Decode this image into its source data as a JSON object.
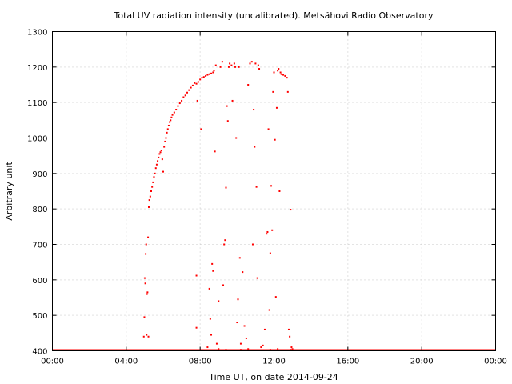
{
  "chart_data": {
    "type": "scatter",
    "title": "Total UV radiation intensity (uncalibrated). Metsähovi Radio Observatory",
    "xlabel": "Time UT, on date 2014-09-24",
    "ylabel": "Arbitrary unit",
    "xlim": [
      0,
      24
    ],
    "ylim": [
      400,
      1300
    ],
    "x_ticks": [
      0,
      4,
      8,
      12,
      16,
      20,
      24
    ],
    "x_tick_labels": [
      "00:00",
      "04:00",
      "08:00",
      "12:00",
      "16:00",
      "20:00",
      "00:00"
    ],
    "y_ticks": [
      400,
      500,
      600,
      700,
      800,
      900,
      1000,
      1100,
      1200,
      1300
    ],
    "y_tick_labels": [
      "400",
      "500",
      "600",
      "700",
      "800",
      "900",
      "1000",
      "1100",
      "1200",
      "1300"
    ],
    "grid": true,
    "marker_color": "#ff0000",
    "baseline": {
      "y": 400,
      "x_start": 0,
      "x_end": 24
    },
    "series": [
      {
        "values": [
          [
            4.85,
            402
          ],
          [
            4.95,
            440
          ],
          [
            4.98,
            495
          ],
          [
            5.0,
            605
          ],
          [
            5.03,
            590
          ],
          [
            5.05,
            673
          ],
          [
            5.08,
            700
          ],
          [
            5.1,
            445
          ],
          [
            5.12,
            560
          ],
          [
            5.15,
            565
          ],
          [
            5.18,
            720
          ],
          [
            5.2,
            440
          ],
          [
            5.22,
            805
          ],
          [
            5.25,
            825
          ],
          [
            5.3,
            835
          ],
          [
            5.35,
            850
          ],
          [
            5.4,
            862
          ],
          [
            5.45,
            875
          ],
          [
            5.5,
            890
          ],
          [
            5.55,
            900
          ],
          [
            5.6,
            915
          ],
          [
            5.65,
            925
          ],
          [
            5.7,
            935
          ],
          [
            5.75,
            945
          ],
          [
            5.8,
            955
          ],
          [
            5.85,
            960
          ],
          [
            5.9,
            965
          ],
          [
            5.95,
            940
          ],
          [
            6.0,
            905
          ],
          [
            6.05,
            975
          ],
          [
            6.1,
            990
          ],
          [
            6.15,
            1000
          ],
          [
            6.2,
            1015
          ],
          [
            6.25,
            1025
          ],
          [
            6.3,
            1035
          ],
          [
            6.35,
            1045
          ],
          [
            6.4,
            1050
          ],
          [
            6.45,
            1058
          ],
          [
            6.5,
            1065
          ],
          [
            6.6,
            1072
          ],
          [
            6.7,
            1080
          ],
          [
            6.8,
            1090
          ],
          [
            6.9,
            1098
          ],
          [
            7.0,
            1105
          ],
          [
            7.1,
            1115
          ],
          [
            7.2,
            1120
          ],
          [
            7.3,
            1128
          ],
          [
            7.4,
            1135
          ],
          [
            7.5,
            1142
          ],
          [
            7.6,
            1148
          ],
          [
            7.7,
            1155
          ],
          [
            7.8,
            1153
          ],
          [
            7.9,
            1158
          ],
          [
            8.0,
            1165
          ],
          [
            8.1,
            1170
          ],
          [
            8.2,
            1172
          ],
          [
            8.3,
            1175
          ],
          [
            8.4,
            1178
          ],
          [
            8.5,
            1180
          ],
          [
            8.6,
            1182
          ],
          [
            8.7,
            1185
          ],
          [
            7.8,
            612
          ],
          [
            7.8,
            465
          ],
          [
            7.85,
            1105
          ],
          [
            8.05,
            1025
          ],
          [
            8.4,
            410
          ],
          [
            8.5,
            575
          ],
          [
            8.55,
            490
          ],
          [
            8.6,
            445
          ],
          [
            8.65,
            645
          ],
          [
            8.7,
            625
          ],
          [
            8.75,
            1190
          ],
          [
            8.8,
            962
          ],
          [
            8.85,
            1205
          ],
          [
            8.9,
            420
          ],
          [
            9.0,
            540
          ],
          [
            9.1,
            1200
          ],
          [
            9.2,
            1215
          ],
          [
            9.25,
            585
          ],
          [
            9.3,
            700
          ],
          [
            9.35,
            712
          ],
          [
            9.4,
            860
          ],
          [
            9.45,
            1090
          ],
          [
            9.5,
            1048
          ],
          [
            9.55,
            1200
          ],
          [
            9.6,
            1210
          ],
          [
            9.7,
            1205
          ],
          [
            9.75,
            1105
          ],
          [
            9.85,
            1210
          ],
          [
            9.9,
            1200
          ],
          [
            9.95,
            1000
          ],
          [
            10.0,
            480
          ],
          [
            10.05,
            545
          ],
          [
            10.1,
            1200
          ],
          [
            10.15,
            662
          ],
          [
            10.2,
            420
          ],
          [
            10.3,
            622
          ],
          [
            10.4,
            470
          ],
          [
            10.5,
            435
          ],
          [
            10.6,
            1150
          ],
          [
            10.7,
            1210
          ],
          [
            10.8,
            1215
          ],
          [
            10.85,
            700
          ],
          [
            10.9,
            1080
          ],
          [
            10.95,
            975
          ],
          [
            11.0,
            1210
          ],
          [
            11.05,
            862
          ],
          [
            11.1,
            605
          ],
          [
            11.15,
            1205
          ],
          [
            11.2,
            1195
          ],
          [
            11.3,
            410
          ],
          [
            11.4,
            415
          ],
          [
            11.5,
            460
          ],
          [
            11.6,
            730
          ],
          [
            11.65,
            735
          ],
          [
            11.7,
            1025
          ],
          [
            11.75,
            515
          ],
          [
            11.8,
            675
          ],
          [
            11.85,
            865
          ],
          [
            11.9,
            740
          ],
          [
            11.95,
            1130
          ],
          [
            12.0,
            1185
          ],
          [
            12.05,
            995
          ],
          [
            12.1,
            552
          ],
          [
            12.15,
            1085
          ],
          [
            12.2,
            1190
          ],
          [
            12.25,
            1195
          ],
          [
            12.3,
            850
          ],
          [
            12.35,
            1185
          ],
          [
            12.4,
            1180
          ],
          [
            12.5,
            1178
          ],
          [
            12.6,
            1175
          ],
          [
            12.7,
            1170
          ],
          [
            12.75,
            1130
          ],
          [
            12.8,
            460
          ],
          [
            12.85,
            440
          ],
          [
            12.9,
            798
          ],
          [
            12.95,
            410
          ],
          [
            13.0,
            405
          ],
          [
            8.3,
            402
          ],
          [
            9.0,
            405
          ],
          [
            9.4,
            403
          ],
          [
            9.8,
            402
          ],
          [
            10.2,
            403
          ],
          [
            10.6,
            405
          ],
          [
            11.4,
            402
          ],
          [
            11.8,
            403
          ],
          [
            12.2,
            405
          ],
          [
            12.6,
            402
          ],
          [
            12.9,
            403
          ]
        ]
      }
    ]
  }
}
